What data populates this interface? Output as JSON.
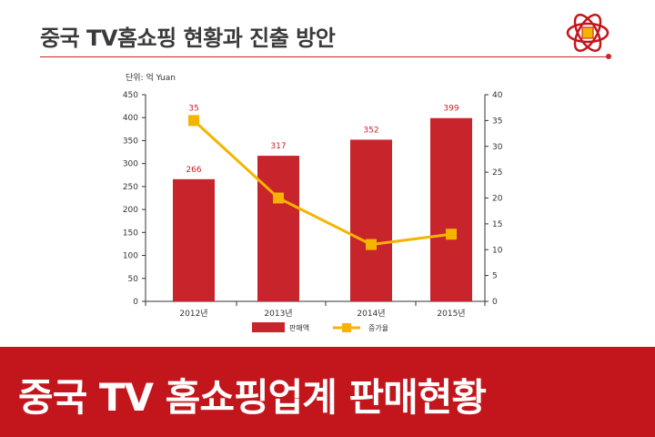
{
  "header": {
    "title": "중국 TV홈쇼핑 현황과 진출 방안"
  },
  "banner": {
    "text": "중국 TV 홈쇼핑업계 판매현황"
  },
  "colors": {
    "accent": "#c3161c",
    "bar": "#c8242c",
    "line": "#f5b400",
    "label": "#c8242c"
  },
  "icons": {
    "logo": "gold-square-red-rosette-logo"
  },
  "chart_data": {
    "type": "bar",
    "unit_label": "단위: 억 Yuan",
    "categories": [
      "2012년",
      "2013년",
      "2014년",
      "2015년"
    ],
    "series": [
      {
        "name": "판매액",
        "type": "bar",
        "axis": "left",
        "values": [
          266,
          317,
          352,
          399
        ]
      },
      {
        "name": "증가율",
        "type": "line",
        "axis": "right",
        "values": [
          35,
          20,
          11,
          13
        ]
      }
    ],
    "ylim_left": [
      0,
      450
    ],
    "ylim_right": [
      0,
      40
    ],
    "left_ticks": [
      "0",
      "50",
      "100",
      "150",
      "200",
      "250",
      "300",
      "350",
      "400",
      "450"
    ],
    "right_ticks": [
      "0",
      "5",
      "10",
      "15",
      "20",
      "25",
      "30",
      "35",
      "40"
    ],
    "grid": false,
    "legend_position": "bottom"
  }
}
